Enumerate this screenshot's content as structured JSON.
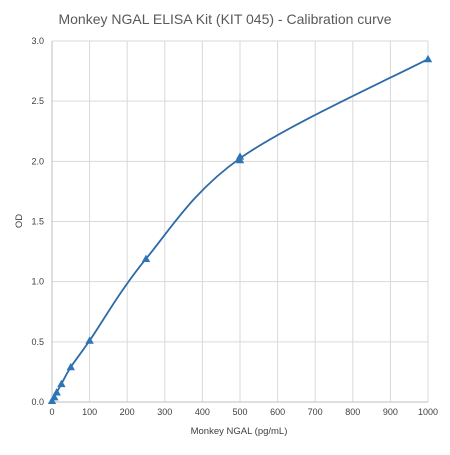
{
  "chart_data": {
    "type": "scatter",
    "title": "Monkey NGAL ELISA Kit (KIT 045) - Calibration curve",
    "xlabel": "Monkey NGAL (pg/mL)",
    "ylabel": "OD",
    "xlim": [
      0,
      1000
    ],
    "ylim": [
      0,
      3.0
    ],
    "x_ticks": [
      0,
      100,
      200,
      300,
      400,
      500,
      600,
      700,
      800,
      900,
      1000
    ],
    "y_ticks": [
      "0.0",
      "0.5",
      "1.0",
      "1.5",
      "2.0",
      "2.5",
      "3.0"
    ],
    "grid": true,
    "legend": "none",
    "marker": "triangle",
    "line": "smooth",
    "color": "#2e75b6",
    "series": [
      {
        "x": [
          0,
          6.25,
          12.5,
          25,
          50,
          100,
          250,
          500,
          500,
          1000
        ],
        "y": [
          0.01,
          0.04,
          0.08,
          0.15,
          0.29,
          0.51,
          1.19,
          2.01,
          2.04,
          2.85
        ]
      }
    ]
  }
}
